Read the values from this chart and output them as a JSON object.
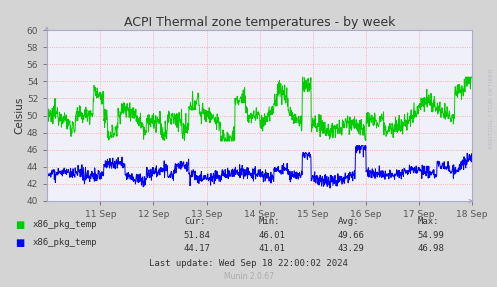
{
  "title": "ACPI Thermal zone temperatures - by week",
  "ylabel": "Celsius",
  "ylim": [
    40,
    60
  ],
  "yticks": [
    40,
    42,
    44,
    46,
    48,
    50,
    52,
    54,
    56,
    58,
    60
  ],
  "x_labels": [
    "11 Sep",
    "12 Sep",
    "13 Sep",
    "14 Sep",
    "15 Sep",
    "16 Sep",
    "17 Sep",
    "18 Sep"
  ],
  "bg_color": "#d4d4d4",
  "plot_bg_color": "#f0f0f8",
  "grid_color": "#ff9999",
  "line1_color": "#00cc00",
  "line2_color": "#0000ff",
  "legend": [
    {
      "label": "x86_pkg_temp",
      "color": "#00cc00"
    },
    {
      "label": "x86_pkg_temp",
      "color": "#0000ff"
    }
  ],
  "stats": {
    "cur": [
      "51.84",
      "44.17"
    ],
    "min": [
      "46.01",
      "41.01"
    ],
    "avg": [
      "49.66",
      "43.29"
    ],
    "max": [
      "54.99",
      "46.98"
    ]
  },
  "footer": "Last update: Wed Sep 18 22:00:02 2024",
  "munin_version": "Munin 2.0.67",
  "rrdtool_label": "RRDTOOL / TOBI OETIKER",
  "axis_color": "#aaaacc",
  "tick_color": "#555555",
  "title_color": "#333333"
}
